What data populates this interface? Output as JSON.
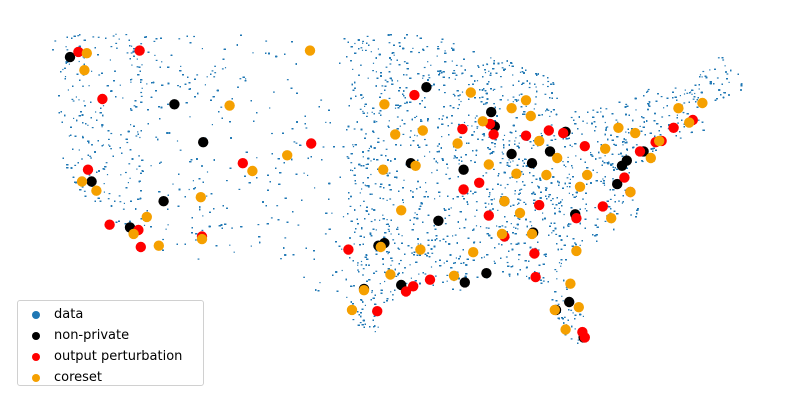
{
  "chart_data": {
    "type": "scatter",
    "title": "",
    "xlabel": "",
    "ylabel": "",
    "axes_visible": false,
    "grid": false,
    "legend_position": "lower-left",
    "xlim": [
      -125,
      -66.5
    ],
    "ylim": [
      24.3,
      49.5
    ],
    "background_series": {
      "name": "data",
      "color": "#1f77b4",
      "description_values": "dense scatter of contiguous-US locations"
    },
    "series": [
      {
        "name": "non-private",
        "color": "#000000",
        "points": [
          [
            -123.0,
            47.2
          ],
          [
            -114.3,
            43.6
          ],
          [
            -121.2,
            37.7
          ],
          [
            -118.0,
            34.2
          ],
          [
            -115.2,
            36.2
          ],
          [
            -111.9,
            40.7
          ],
          [
            -97.3,
            32.8
          ],
          [
            -96.8,
            33.0
          ],
          [
            -95.4,
            29.8
          ],
          [
            -98.5,
            29.5
          ],
          [
            -94.6,
            39.1
          ],
          [
            -93.3,
            44.9
          ],
          [
            -87.6,
            41.9
          ],
          [
            -87.9,
            43.0
          ],
          [
            -86.2,
            39.8
          ],
          [
            -86.8,
            36.2
          ],
          [
            -84.4,
            33.8
          ],
          [
            -80.9,
            35.2
          ],
          [
            -77.4,
            37.5
          ],
          [
            -77.0,
            38.9
          ],
          [
            -75.2,
            40.0
          ],
          [
            -81.7,
            41.5
          ],
          [
            -83.0,
            40.0
          ],
          [
            -84.5,
            39.1
          ],
          [
            -82.5,
            27.9
          ],
          [
            -81.4,
            28.5
          ],
          [
            -80.2,
            25.8
          ],
          [
            -90.1,
            30.0
          ],
          [
            -92.3,
            34.7
          ],
          [
            -90.2,
            38.6
          ],
          [
            -88.3,
            30.7
          ],
          [
            -76.6,
            39.3
          ]
        ]
      },
      {
        "name": "output perturbation",
        "color": "#ff0000",
        "points": [
          [
            -122.3,
            47.6
          ],
          [
            -117.2,
            47.7
          ],
          [
            -120.3,
            44.0
          ],
          [
            -121.5,
            38.6
          ],
          [
            -119.7,
            34.4
          ],
          [
            -117.3,
            34.0
          ],
          [
            -117.1,
            32.7
          ],
          [
            -112.0,
            33.5
          ],
          [
            -108.6,
            39.1
          ],
          [
            -102.9,
            40.6
          ],
          [
            -94.3,
            44.3
          ],
          [
            -90.3,
            41.7
          ],
          [
            -88.0,
            42.1
          ],
          [
            -85.0,
            41.2
          ],
          [
            -83.1,
            41.6
          ],
          [
            -81.9,
            41.4
          ],
          [
            -80.1,
            40.4
          ],
          [
            -75.5,
            40.0
          ],
          [
            -74.2,
            40.7
          ],
          [
            -73.7,
            40.8
          ],
          [
            -71.1,
            42.4
          ],
          [
            -72.7,
            41.8
          ],
          [
            -76.8,
            38.0
          ],
          [
            -76.3,
            36.9
          ],
          [
            -78.6,
            35.8
          ],
          [
            -80.8,
            34.9
          ],
          [
            -83.9,
            35.9
          ],
          [
            -86.8,
            33.5
          ],
          [
            -88.1,
            35.1
          ],
          [
            -90.2,
            37.1
          ],
          [
            -93.0,
            30.2
          ],
          [
            -94.4,
            29.7
          ],
          [
            -95.0,
            29.3
          ],
          [
            -97.4,
            27.8
          ],
          [
            -84.2,
            30.4
          ],
          [
            -80.3,
            26.2
          ],
          [
            -80.1,
            25.8
          ],
          [
            -84.3,
            32.2
          ],
          [
            -99.8,
            32.5
          ],
          [
            -88.9,
            37.6
          ],
          [
            -87.7,
            41.3
          ]
        ]
      },
      {
        "name": "coreset",
        "color": "#f5a000",
        "points": [
          [
            -121.6,
            47.5
          ],
          [
            -121.8,
            46.2
          ],
          [
            -122.0,
            37.7
          ],
          [
            -120.8,
            37.0
          ],
          [
            -117.7,
            33.7
          ],
          [
            -116.6,
            35.0
          ],
          [
            -115.6,
            32.8
          ],
          [
            -112.1,
            36.5
          ],
          [
            -109.7,
            43.5
          ],
          [
            -107.8,
            38.5
          ],
          [
            -104.9,
            39.7
          ],
          [
            -103.0,
            47.7
          ],
          [
            -96.8,
            43.6
          ],
          [
            -95.9,
            41.3
          ],
          [
            -96.9,
            38.6
          ],
          [
            -94.2,
            38.9
          ],
          [
            -93.6,
            41.6
          ],
          [
            -90.7,
            40.6
          ],
          [
            -89.6,
            44.5
          ],
          [
            -88.1,
            39.0
          ],
          [
            -86.2,
            43.3
          ],
          [
            -85.0,
            43.9
          ],
          [
            -84.6,
            42.7
          ],
          [
            -83.9,
            40.8
          ],
          [
            -82.4,
            39.5
          ],
          [
            -83.3,
            38.2
          ],
          [
            -85.8,
            38.3
          ],
          [
            -86.8,
            36.2
          ],
          [
            -87.0,
            33.7
          ],
          [
            -89.4,
            32.3
          ],
          [
            -91.0,
            30.5
          ],
          [
            -93.8,
            32.5
          ],
          [
            -95.4,
            35.5
          ],
          [
            -97.1,
            32.7
          ],
          [
            -99.5,
            27.9
          ],
          [
            -98.5,
            29.4
          ],
          [
            -96.3,
            30.6
          ],
          [
            -82.6,
            27.9
          ],
          [
            -81.7,
            26.4
          ],
          [
            -81.3,
            29.9
          ],
          [
            -80.6,
            28.1
          ],
          [
            -80.8,
            32.4
          ],
          [
            -84.5,
            33.7
          ],
          [
            -80.5,
            37.3
          ],
          [
            -79.9,
            38.2
          ],
          [
            -78.4,
            40.2
          ],
          [
            -77.3,
            41.8
          ],
          [
            -75.9,
            41.4
          ],
          [
            -73.9,
            40.8
          ],
          [
            -74.6,
            39.5
          ],
          [
            -72.3,
            43.3
          ],
          [
            -70.3,
            43.7
          ],
          [
            -71.4,
            42.2
          ],
          [
            -76.3,
            36.9
          ],
          [
            -77.9,
            34.9
          ],
          [
            -85.5,
            35.3
          ],
          [
            -88.6,
            42.3
          ],
          [
            -112.0,
            33.3
          ]
        ]
      }
    ],
    "legend": [
      "data",
      "non-private",
      "output perturbation",
      "coreset"
    ]
  }
}
